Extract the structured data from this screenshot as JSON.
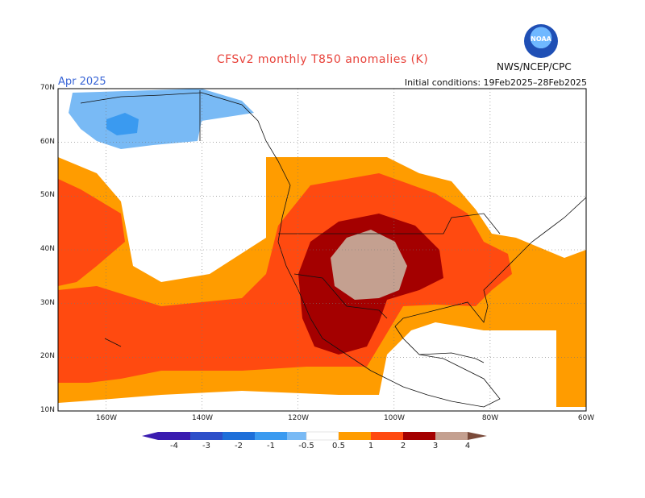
{
  "header": {
    "title": "CFSv2 monthly T850 anomalies (K)",
    "month": "Apr 2025",
    "initial_conditions": "Initial conditions: 19Feb2025–28Feb2025",
    "agency": "NWS/NCEP/CPC",
    "logo_text": "NOAA"
  },
  "map": {
    "region": "North America and eastern Pacific",
    "lon_range": [
      -170,
      -60
    ],
    "lat_range": [
      10,
      70
    ],
    "lat_labels": [
      "70N",
      "60N",
      "50N",
      "40N",
      "30N",
      "20N",
      "10N"
    ],
    "lon_labels": [
      "160W",
      "140W",
      "120W",
      "100W",
      "80W",
      "60W"
    ],
    "gridlines": "dotted",
    "anomaly_regions": [
      {
        "level": "3 to 4",
        "area": "Four Corners / southern Rockies"
      },
      {
        "level": "2 to 3",
        "area": "Southwest US, Great Plains, northwest Mexico"
      },
      {
        "level": "1 to 2",
        "area": "Central/eastern US, subtropical eastern Pacific"
      },
      {
        "level": "0.5 to 1",
        "area": "Northern US, Gulf of Mexico, Atlantic, Pacific band"
      },
      {
        "level": "-1 to -0.5",
        "area": "Alaska"
      },
      {
        "level": "-2 to -1",
        "area": "Interior Alaska"
      }
    ]
  },
  "colorbar": {
    "labels": [
      "-4",
      "-3",
      "-2",
      "-1",
      "-0.5",
      "0.5",
      "1",
      "2",
      "3",
      "4"
    ],
    "colors": [
      "#3a1cb0",
      "#2d4fc9",
      "#1e6fd9",
      "#3a9af0",
      "#79baf5",
      "#ffffff",
      "#ff9c00",
      "#ff4a10",
      "#a40000",
      "#c4a090",
      "#7a4a3a"
    ]
  }
}
